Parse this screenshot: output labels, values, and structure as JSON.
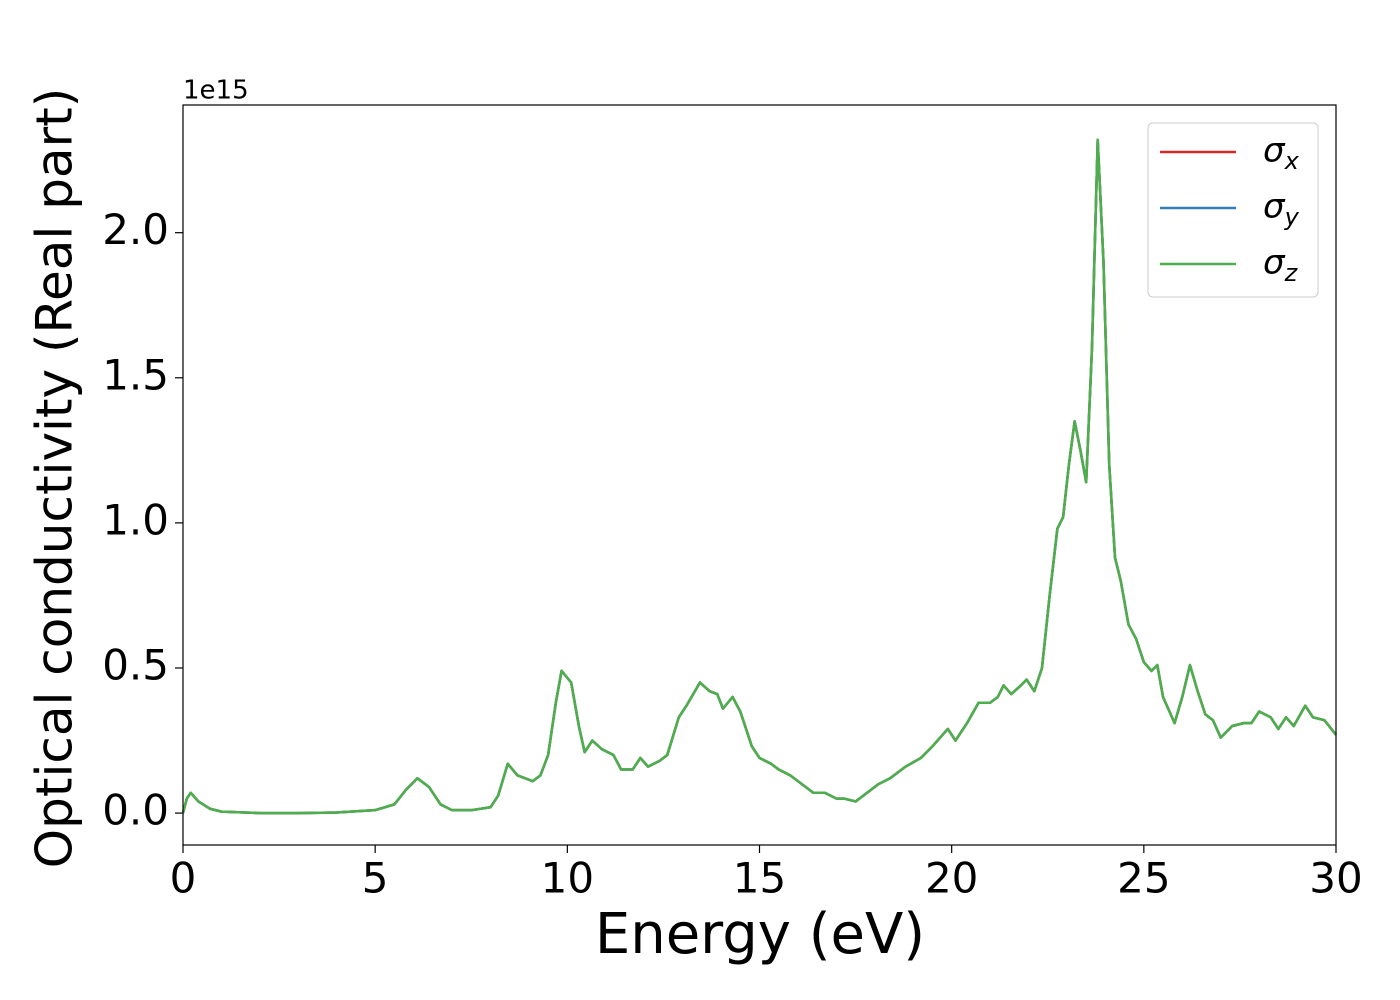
{
  "chart_data": {
    "type": "line",
    "xlabel": "Energy (eV)",
    "ylabel": "Optical conductivity (Real part)",
    "y_offset_label": "1e15",
    "x": [
      0,
      0.1,
      0.2,
      0.4,
      0.7,
      1,
      2,
      3,
      4,
      5,
      5.5,
      5.8,
      6.1,
      6.4,
      6.7,
      7,
      7.5,
      8,
      8.2,
      8.45,
      8.7,
      8.9,
      9.1,
      9.3,
      9.5,
      9.7,
      9.85,
      10.1,
      10.3,
      10.45,
      10.65,
      10.9,
      11.2,
      11.4,
      11.7,
      11.9,
      12.1,
      12.4,
      12.6,
      12.9,
      13.1,
      13.45,
      13.7,
      13.9,
      14.05,
      14.3,
      14.5,
      14.8,
      15,
      15.3,
      15.5,
      15.8,
      16.1,
      16.4,
      16.7,
      17,
      17.2,
      17.5,
      17.8,
      18.1,
      18.4,
      18.8,
      19.2,
      19.5,
      19.9,
      20.1,
      20.4,
      20.7,
      21,
      21.2,
      21.35,
      21.55,
      21.8,
      21.95,
      22.15,
      22.35,
      22.55,
      22.75,
      22.9,
      23.05,
      23.2,
      23.35,
      23.5,
      23.65,
      23.8,
      23.95,
      24.1,
      24.25,
      24.4,
      24.6,
      24.8,
      25,
      25.2,
      25.35,
      25.5,
      25.8,
      26,
      26.2,
      26.4,
      26.6,
      26.8,
      27,
      27.3,
      27.6,
      27.8,
      28,
      28.3,
      28.5,
      28.7,
      28.9,
      29.2,
      29.4,
      29.7,
      30
    ],
    "series": [
      {
        "name": "σx",
        "color": "#d62728",
        "values": [
          0,
          0.05,
          0.07,
          0.04,
          0.015,
          0.005,
          0,
          0,
          0.002,
          0.01,
          0.03,
          0.08,
          0.12,
          0.09,
          0.03,
          0.01,
          0.01,
          0.02,
          0.06,
          0.17,
          0.13,
          0.12,
          0.11,
          0.13,
          0.2,
          0.38,
          0.49,
          0.45,
          0.3,
          0.21,
          0.25,
          0.22,
          0.2,
          0.15,
          0.15,
          0.19,
          0.16,
          0.18,
          0.2,
          0.33,
          0.37,
          0.45,
          0.42,
          0.41,
          0.36,
          0.4,
          0.35,
          0.23,
          0.19,
          0.17,
          0.15,
          0.13,
          0.1,
          0.07,
          0.07,
          0.05,
          0.05,
          0.04,
          0.07,
          0.1,
          0.12,
          0.16,
          0.19,
          0.23,
          0.29,
          0.25,
          0.31,
          0.38,
          0.38,
          0.4,
          0.44,
          0.41,
          0.44,
          0.46,
          0.42,
          0.5,
          0.75,
          0.98,
          1.02,
          1.2,
          1.35,
          1.25,
          1.14,
          1.6,
          2.32,
          1.9,
          1.2,
          0.88,
          0.8,
          0.65,
          0.6,
          0.52,
          0.49,
          0.51,
          0.4,
          0.31,
          0.4,
          0.51,
          0.42,
          0.34,
          0.32,
          0.26,
          0.3,
          0.31,
          0.31,
          0.35,
          0.33,
          0.29,
          0.33,
          0.3,
          0.37,
          0.33,
          0.32,
          0.27
        ]
      },
      {
        "name": "σy",
        "color": "#377eb8",
        "values": [
          0,
          0.05,
          0.07,
          0.04,
          0.015,
          0.005,
          0,
          0,
          0.002,
          0.01,
          0.03,
          0.08,
          0.12,
          0.09,
          0.03,
          0.01,
          0.01,
          0.02,
          0.06,
          0.17,
          0.13,
          0.12,
          0.11,
          0.13,
          0.2,
          0.38,
          0.49,
          0.45,
          0.3,
          0.21,
          0.25,
          0.22,
          0.2,
          0.15,
          0.15,
          0.19,
          0.16,
          0.18,
          0.2,
          0.33,
          0.37,
          0.45,
          0.42,
          0.41,
          0.36,
          0.4,
          0.35,
          0.23,
          0.19,
          0.17,
          0.15,
          0.13,
          0.1,
          0.07,
          0.07,
          0.05,
          0.05,
          0.04,
          0.07,
          0.1,
          0.12,
          0.16,
          0.19,
          0.23,
          0.29,
          0.25,
          0.31,
          0.38,
          0.38,
          0.4,
          0.44,
          0.41,
          0.44,
          0.46,
          0.42,
          0.5,
          0.75,
          0.98,
          1.02,
          1.2,
          1.35,
          1.25,
          1.14,
          1.6,
          2.32,
          1.9,
          1.2,
          0.88,
          0.8,
          0.65,
          0.6,
          0.52,
          0.49,
          0.51,
          0.4,
          0.31,
          0.4,
          0.51,
          0.42,
          0.34,
          0.32,
          0.26,
          0.3,
          0.31,
          0.31,
          0.35,
          0.33,
          0.29,
          0.33,
          0.3,
          0.37,
          0.33,
          0.32,
          0.27
        ]
      },
      {
        "name": "σz",
        "color": "#4daf4a",
        "values": [
          0,
          0.05,
          0.07,
          0.04,
          0.015,
          0.005,
          0,
          0,
          0.002,
          0.01,
          0.03,
          0.08,
          0.12,
          0.09,
          0.03,
          0.01,
          0.01,
          0.02,
          0.06,
          0.17,
          0.13,
          0.12,
          0.11,
          0.13,
          0.2,
          0.38,
          0.49,
          0.45,
          0.3,
          0.21,
          0.25,
          0.22,
          0.2,
          0.15,
          0.15,
          0.19,
          0.16,
          0.18,
          0.2,
          0.33,
          0.37,
          0.45,
          0.42,
          0.41,
          0.36,
          0.4,
          0.35,
          0.23,
          0.19,
          0.17,
          0.15,
          0.13,
          0.1,
          0.07,
          0.07,
          0.05,
          0.05,
          0.04,
          0.07,
          0.1,
          0.12,
          0.16,
          0.19,
          0.23,
          0.29,
          0.25,
          0.31,
          0.38,
          0.38,
          0.4,
          0.44,
          0.41,
          0.44,
          0.46,
          0.42,
          0.5,
          0.75,
          0.98,
          1.02,
          1.2,
          1.35,
          1.25,
          1.14,
          1.6,
          2.32,
          1.9,
          1.2,
          0.88,
          0.8,
          0.65,
          0.6,
          0.52,
          0.49,
          0.51,
          0.4,
          0.31,
          0.4,
          0.51,
          0.42,
          0.34,
          0.32,
          0.26,
          0.3,
          0.31,
          0.31,
          0.35,
          0.33,
          0.29,
          0.33,
          0.3,
          0.37,
          0.33,
          0.32,
          0.27
        ]
      }
    ],
    "xlim": [
      0,
      30
    ],
    "xticks": [
      0,
      5,
      10,
      15,
      20,
      25,
      30
    ],
    "ylim": [
      -0.11,
      2.44
    ],
    "yticks": [
      {
        "value": 0,
        "label": "0.0"
      },
      0.5,
      {
        "value": 1,
        "label": "1.0"
      },
      1.5,
      {
        "value": 2,
        "label": "2.0"
      }
    ],
    "grid": false,
    "legend": "upper right"
  }
}
